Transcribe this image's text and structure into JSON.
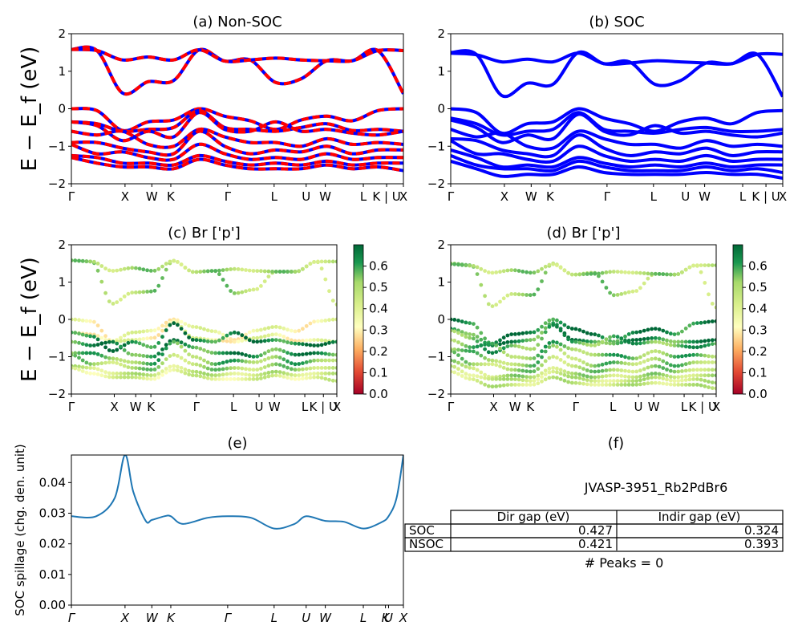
{
  "chart_data": [
    {
      "id": "a",
      "type": "line",
      "title": "(a) Non-SOC",
      "ylabel": "E − E_f (eV)",
      "ylim": [
        -2,
        2
      ],
      "yticks": [
        "2",
        "1",
        "0",
        "−1",
        "−2"
      ],
      "kpath": [
        "Γ",
        "X",
        "W",
        "K",
        "Γ",
        "L",
        "U",
        "W",
        "L",
        "K | U",
        "X"
      ],
      "kpos": [
        0,
        0.866,
        1.299,
        1.605,
        2.523,
        3.273,
        3.79,
        4.099,
        4.713,
        5.089,
        5.36
      ],
      "series": [
        {
          "values": [
            1.58,
            1.55,
            0.42,
            0.72,
            0.75,
            1.57,
            1.27,
            1.3,
            0.7,
            0.8,
            1.28,
            1.28,
            1.55,
            0.4
          ]
        },
        {
          "values": [
            1.58,
            1.55,
            1.3,
            1.38,
            1.3,
            1.57,
            1.27,
            1.3,
            1.35,
            1.3,
            1.28,
            1.28,
            1.55,
            1.55
          ]
        },
        {
          "values": [
            0.0,
            -0.05,
            -0.58,
            -0.35,
            -0.3,
            0.0,
            -0.2,
            -0.32,
            -0.55,
            -0.3,
            -0.2,
            -0.32,
            -0.05,
            0.0
          ]
        },
        {
          "values": [
            -0.35,
            -0.4,
            -0.6,
            -0.55,
            -0.5,
            -0.05,
            -0.5,
            -0.55,
            -0.6,
            -0.5,
            -0.4,
            -0.58,
            -0.55,
            -0.6
          ]
        },
        {
          "values": [
            -0.35,
            -0.45,
            -0.85,
            -0.6,
            -0.75,
            -0.1,
            -0.55,
            -0.6,
            -0.35,
            -0.6,
            -0.55,
            -0.65,
            -0.7,
            -0.6
          ]
        },
        {
          "values": [
            -0.6,
            -0.7,
            -0.6,
            -0.95,
            -1.0,
            -0.55,
            -0.75,
            -0.9,
            -0.9,
            -1.0,
            -0.8,
            -0.95,
            -0.9,
            -0.95
          ]
        },
        {
          "values": [
            -0.9,
            -0.9,
            -1.05,
            -1.15,
            -1.2,
            -0.6,
            -1.0,
            -1.2,
            -1.1,
            -1.15,
            -1.0,
            -1.2,
            -1.1,
            -1.1
          ]
        },
        {
          "values": [
            -0.95,
            -1.2,
            -1.15,
            -1.3,
            -1.35,
            -0.95,
            -1.2,
            -1.35,
            -1.3,
            -1.35,
            -1.2,
            -1.35,
            -1.3,
            -1.3
          ]
        },
        {
          "values": [
            -1.25,
            -1.3,
            -1.45,
            -1.45,
            -1.5,
            -1.25,
            -1.4,
            -1.5,
            -1.45,
            -1.5,
            -1.4,
            -1.5,
            -1.45,
            -1.45
          ]
        },
        {
          "values": [
            -1.3,
            -1.45,
            -1.55,
            -1.55,
            -1.6,
            -1.35,
            -1.5,
            -1.6,
            -1.6,
            -1.6,
            -1.5,
            -1.6,
            -1.55,
            -1.65
          ]
        }
      ]
    },
    {
      "id": "b",
      "type": "line",
      "title": "(b) SOC",
      "ylim": [
        -2,
        2
      ],
      "yticks": [
        "2",
        "1",
        "0",
        "−1",
        "−2"
      ],
      "kpath": [
        "Γ",
        "X",
        "W",
        "K",
        "Γ",
        "L",
        "U",
        "W",
        "L",
        "K | U",
        "X"
      ],
      "kpos": [
        0,
        0.866,
        1.299,
        1.605,
        2.523,
        3.273,
        3.79,
        4.099,
        4.713,
        5.089,
        5.36
      ],
      "series": [
        {
          "values": [
            1.5,
            1.45,
            0.35,
            0.68,
            0.65,
            1.5,
            1.2,
            1.25,
            0.65,
            0.75,
            1.22,
            1.2,
            1.45,
            0.32
          ]
        },
        {
          "values": [
            1.48,
            1.44,
            1.25,
            1.32,
            1.25,
            1.48,
            1.2,
            1.22,
            1.28,
            1.25,
            1.22,
            1.2,
            1.45,
            1.45
          ]
        },
        {
          "values": [
            0.0,
            -0.1,
            -0.65,
            -0.4,
            -0.35,
            0.0,
            -0.25,
            -0.4,
            -0.6,
            -0.35,
            -0.25,
            -0.4,
            -0.1,
            -0.05
          ]
        },
        {
          "values": [
            -0.25,
            -0.4,
            -0.7,
            -0.6,
            -0.55,
            -0.1,
            -0.55,
            -0.6,
            -0.65,
            -0.55,
            -0.5,
            -0.6,
            -0.6,
            -0.55
          ]
        },
        {
          "values": [
            -0.3,
            -0.5,
            -0.9,
            -0.7,
            -0.8,
            -0.15,
            -0.6,
            -0.7,
            -0.45,
            -0.65,
            -0.6,
            -0.7,
            -0.75,
            -0.65
          ]
        },
        {
          "values": [
            -0.55,
            -0.75,
            -0.65,
            -1.0,
            -1.05,
            -0.6,
            -0.8,
            -0.95,
            -0.95,
            -1.05,
            -0.85,
            -1.0,
            -0.95,
            -1.0
          ]
        },
        {
          "values": [
            -0.8,
            -0.85,
            -1.1,
            -1.2,
            -1.25,
            -0.7,
            -1.05,
            -1.25,
            -1.15,
            -1.2,
            -1.05,
            -1.25,
            -1.15,
            -1.15
          ]
        },
        {
          "values": [
            -0.85,
            -1.2,
            -1.2,
            -1.35,
            -1.4,
            -1.0,
            -1.25,
            -1.4,
            -1.35,
            -1.4,
            -1.25,
            -1.4,
            -1.35,
            -1.35
          ]
        },
        {
          "values": [
            -1.1,
            -1.3,
            -1.55,
            -1.5,
            -1.55,
            -1.3,
            -1.45,
            -1.55,
            -1.5,
            -1.55,
            -1.45,
            -1.55,
            -1.5,
            -1.5
          ]
        },
        {
          "values": [
            -1.25,
            -1.5,
            -1.6,
            -1.6,
            -1.65,
            -1.4,
            -1.55,
            -1.65,
            -1.65,
            -1.65,
            -1.55,
            -1.65,
            -1.6,
            -1.7
          ]
        },
        {
          "values": [
            -1.4,
            -1.6,
            -1.8,
            -1.75,
            -1.75,
            -1.55,
            -1.7,
            -1.75,
            -1.75,
            -1.75,
            -1.7,
            -1.75,
            -1.75,
            -1.85
          ]
        }
      ]
    },
    {
      "id": "c",
      "type": "scatter",
      "title": "(c)  Br ['p']",
      "ylabel": "E − E_f (eV)",
      "ylim": [
        -2,
        2
      ],
      "yticks": [
        "2",
        "1",
        "0",
        "−1",
        "−2"
      ],
      "kpath": [
        "Γ",
        "X",
        "W",
        "K",
        "Γ",
        "L",
        "U",
        "W",
        "L",
        "K | U",
        "X"
      ],
      "kpos": [
        0,
        0.866,
        1.299,
        1.605,
        2.523,
        3.273,
        3.79,
        4.099,
        4.713,
        5.089,
        5.36
      ],
      "colorbar": {
        "range": [
          0.0,
          0.7
        ],
        "ticks": [
          "0.0",
          "0.1",
          "0.2",
          "0.3",
          "0.4",
          "0.5",
          "0.6"
        ]
      },
      "weights": [
        0.5,
        0.5,
        0.35,
        0.35,
        0.65,
        0.62,
        0.55,
        0.5,
        0.45,
        0.4
      ],
      "series_ref": "a"
    },
    {
      "id": "d",
      "type": "scatter",
      "title": "(d) Br ['p']",
      "ylim": [
        -2,
        2
      ],
      "yticks": [
        "2",
        "1",
        "0",
        "−1",
        "−2"
      ],
      "kpath": [
        "Γ",
        "X",
        "W",
        "K",
        "Γ",
        "L",
        "U",
        "W",
        "L",
        "K | U",
        "X"
      ],
      "kpos": [
        0,
        0.866,
        1.299,
        1.605,
        2.523,
        3.273,
        3.79,
        4.099,
        4.713,
        5.089,
        5.36
      ],
      "colorbar": {
        "range": [
          0.0,
          0.7
        ],
        "ticks": [
          "0.0",
          "0.1",
          "0.2",
          "0.3",
          "0.4",
          "0.5",
          "0.6"
        ]
      },
      "weights": [
        0.5,
        0.5,
        0.65,
        0.62,
        0.58,
        0.55,
        0.52,
        0.5,
        0.48,
        0.45,
        0.45
      ],
      "series_ref": "b"
    },
    {
      "id": "e",
      "type": "line",
      "title": "(e)",
      "ylabel": "SOC spillage (chg. den. unit)",
      "ylim": [
        0,
        0.049
      ],
      "yticks": [
        "0.04",
        "0.03",
        "0.02",
        "0.01",
        "0.00"
      ],
      "kpath": [
        "Γ",
        "X",
        "W",
        "K",
        "Γ",
        "L",
        "U",
        "W",
        "L",
        "K",
        "U",
        "X"
      ],
      "kpos": [
        0,
        0.866,
        1.299,
        1.605,
        2.523,
        3.273,
        3.79,
        4.099,
        4.713,
        5.07,
        5.12,
        5.36
      ],
      "x": [
        0,
        0.4,
        0.7,
        0.866,
        1.0,
        1.2,
        1.299,
        1.5,
        1.605,
        1.8,
        2.2,
        2.523,
        2.9,
        3.273,
        3.6,
        3.79,
        4.099,
        4.4,
        4.713,
        5.0,
        5.12,
        5.25,
        5.36
      ],
      "values": [
        0.029,
        0.029,
        0.035,
        0.049,
        0.037,
        0.0275,
        0.0278,
        0.029,
        0.029,
        0.0265,
        0.0285,
        0.029,
        0.0285,
        0.025,
        0.0265,
        0.029,
        0.0275,
        0.0272,
        0.025,
        0.027,
        0.029,
        0.035,
        0.049
      ]
    }
  ],
  "table": {
    "title": "(f)",
    "material": "JVASP-3951_Rb2PdBr6",
    "columns": [
      "Dir gap (eV)",
      "Indir gap (eV)"
    ],
    "rows": [
      {
        "label": "SOC",
        "dir": "0.427",
        "indir": "0.324"
      },
      {
        "label": "NSOC",
        "dir": "0.421",
        "indir": "0.393"
      }
    ],
    "peaks": "# Peaks = 0"
  }
}
